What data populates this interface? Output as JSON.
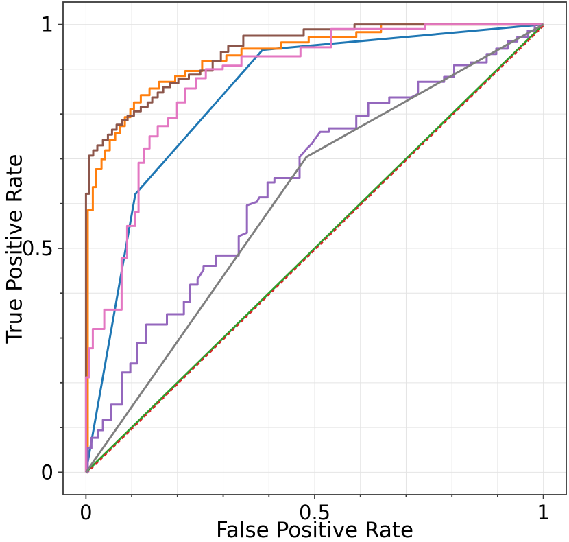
{
  "chart_data": {
    "type": "line",
    "title": "",
    "xlabel": "False Positive Rate",
    "ylabel": "True Positive Rate",
    "xlim": [
      -0.05,
      1.05
    ],
    "ylim": [
      -0.05,
      1.05
    ],
    "x_tick_labels": [
      {
        "value": 0,
        "label": "0"
      },
      {
        "value": 0.5,
        "label": "0.5"
      },
      {
        "value": 1,
        "label": "1"
      }
    ],
    "y_tick_labels": [
      {
        "value": 0,
        "label": "0"
      },
      {
        "value": 0.5,
        "label": "0.5"
      },
      {
        "value": 1,
        "label": "1"
      }
    ],
    "minor_tick_step": 0.1,
    "grid": {
      "on": true,
      "step": 0.1,
      "color": "#e4e4e4"
    },
    "legend": "none",
    "colors": {
      "spine": "#3a3a3a",
      "tick": "#3a3a3a",
      "text": "#000000",
      "background": "#ffffff"
    },
    "series": [
      {
        "name": "roc-curve-blue",
        "color": "#1f77b4",
        "style": "solid",
        "points": [
          [
            0,
            0
          ],
          [
            0.108,
            0.621
          ],
          [
            0.386,
            0.943
          ],
          [
            1,
            1
          ]
        ]
      },
      {
        "name": "roc-curve-orange",
        "color": "#ff7f0e",
        "style": "solid",
        "points": [
          [
            0.004,
            0
          ],
          [
            0.004,
            0.585
          ],
          [
            0.015,
            0.585
          ],
          [
            0.015,
            0.637
          ],
          [
            0.022,
            0.637
          ],
          [
            0.022,
            0.677
          ],
          [
            0.034,
            0.677
          ],
          [
            0.034,
            0.699
          ],
          [
            0.042,
            0.699
          ],
          [
            0.042,
            0.719
          ],
          [
            0.052,
            0.719
          ],
          [
            0.052,
            0.742
          ],
          [
            0.064,
            0.742
          ],
          [
            0.064,
            0.757
          ],
          [
            0.075,
            0.757
          ],
          [
            0.075,
            0.773
          ],
          [
            0.085,
            0.773
          ],
          [
            0.085,
            0.793
          ],
          [
            0.097,
            0.793
          ],
          [
            0.097,
            0.811
          ],
          [
            0.105,
            0.811
          ],
          [
            0.105,
            0.826
          ],
          [
            0.12,
            0.826
          ],
          [
            0.12,
            0.842
          ],
          [
            0.139,
            0.842
          ],
          [
            0.139,
            0.857
          ],
          [
            0.16,
            0.857
          ],
          [
            0.16,
            0.872
          ],
          [
            0.195,
            0.872
          ],
          [
            0.195,
            0.885
          ],
          [
            0.217,
            0.885
          ],
          [
            0.217,
            0.896
          ],
          [
            0.254,
            0.896
          ],
          [
            0.254,
            0.919
          ],
          [
            0.307,
            0.919
          ],
          [
            0.307,
            0.931
          ],
          [
            0.34,
            0.931
          ],
          [
            0.34,
            0.946
          ],
          [
            0.427,
            0.946
          ],
          [
            0.427,
            0.96
          ],
          [
            0.487,
            0.96
          ],
          [
            0.487,
            0.972
          ],
          [
            0.591,
            0.972
          ],
          [
            0.591,
            0.983
          ],
          [
            0.645,
            0.983
          ],
          [
            0.645,
            1
          ],
          [
            1,
            1
          ]
        ]
      },
      {
        "name": "roc-curve-green-chance",
        "color": "#2ca02c",
        "style": "solid",
        "points": [
          [
            0,
            0
          ],
          [
            1,
            1
          ]
        ]
      },
      {
        "name": "roc-curve-red-chance",
        "color": "#d62728",
        "style": "dashed",
        "points": [
          [
            0,
            0
          ],
          [
            1,
            1
          ]
        ]
      },
      {
        "name": "roc-curve-purple",
        "color": "#9467bd",
        "style": "solid",
        "points": [
          [
            0,
            0
          ],
          [
            0.004,
            0
          ],
          [
            0.004,
            0.054
          ],
          [
            0.012,
            0.054
          ],
          [
            0.012,
            0.077
          ],
          [
            0.027,
            0.077
          ],
          [
            0.027,
            0.094
          ],
          [
            0.037,
            0.094
          ],
          [
            0.037,
            0.117
          ],
          [
            0.055,
            0.117
          ],
          [
            0.055,
            0.151
          ],
          [
            0.079,
            0.151
          ],
          [
            0.079,
            0.223
          ],
          [
            0.097,
            0.223
          ],
          [
            0.097,
            0.243
          ],
          [
            0.112,
            0.243
          ],
          [
            0.112,
            0.289
          ],
          [
            0.132,
            0.289
          ],
          [
            0.132,
            0.33
          ],
          [
            0.177,
            0.33
          ],
          [
            0.177,
            0.353
          ],
          [
            0.214,
            0.353
          ],
          [
            0.214,
            0.381
          ],
          [
            0.228,
            0.381
          ],
          [
            0.228,
            0.419
          ],
          [
            0.244,
            0.419
          ],
          [
            0.244,
            0.432
          ],
          [
            0.251,
            0.442
          ],
          [
            0.257,
            0.453
          ],
          [
            0.257,
            0.461
          ],
          [
            0.284,
            0.461
          ],
          [
            0.284,
            0.484
          ],
          [
            0.334,
            0.484
          ],
          [
            0.334,
            0.527
          ],
          [
            0.352,
            0.535
          ],
          [
            0.352,
            0.596
          ],
          [
            0.374,
            0.604
          ],
          [
            0.379,
            0.614
          ],
          [
            0.397,
            0.614
          ],
          [
            0.397,
            0.647
          ],
          [
            0.412,
            0.647
          ],
          [
            0.412,
            0.657
          ],
          [
            0.467,
            0.657
          ],
          [
            0.467,
            0.704
          ],
          [
            0.476,
            0.714
          ],
          [
            0.483,
            0.723
          ],
          [
            0.494,
            0.734
          ],
          [
            0.501,
            0.745
          ],
          [
            0.512,
            0.76
          ],
          [
            0.531,
            0.76
          ],
          [
            0.531,
            0.768
          ],
          [
            0.591,
            0.768
          ],
          [
            0.591,
            0.796
          ],
          [
            0.617,
            0.796
          ],
          [
            0.617,
            0.825
          ],
          [
            0.663,
            0.825
          ],
          [
            0.663,
            0.837
          ],
          [
            0.711,
            0.837
          ],
          [
            0.726,
            0.845
          ],
          [
            0.726,
            0.872
          ],
          [
            0.783,
            0.872
          ],
          [
            0.783,
            0.883
          ],
          [
            0.805,
            0.883
          ],
          [
            0.805,
            0.909
          ],
          [
            0.841,
            0.909
          ],
          [
            0.841,
            0.915
          ],
          [
            0.876,
            0.915
          ],
          [
            0.876,
            0.934
          ],
          [
            0.897,
            0.934
          ],
          [
            0.897,
            0.946
          ],
          [
            0.922,
            0.946
          ],
          [
            0.922,
            0.962
          ],
          [
            0.943,
            0.962
          ],
          [
            0.943,
            0.972
          ],
          [
            0.966,
            0.972
          ],
          [
            0.966,
            0.986
          ],
          [
            0.981,
            0.986
          ],
          [
            0.981,
            1
          ],
          [
            1,
            1
          ]
        ]
      },
      {
        "name": "roc-curve-brown",
        "color": "#8c564b",
        "style": "solid",
        "points": [
          [
            0,
            0
          ],
          [
            0,
            0.622
          ],
          [
            0.007,
            0.622
          ],
          [
            0.007,
            0.707
          ],
          [
            0.016,
            0.707
          ],
          [
            0.016,
            0.719
          ],
          [
            0.025,
            0.719
          ],
          [
            0.025,
            0.73
          ],
          [
            0.037,
            0.73
          ],
          [
            0.037,
            0.742
          ],
          [
            0.048,
            0.742
          ],
          [
            0.048,
            0.754
          ],
          [
            0.057,
            0.754
          ],
          [
            0.057,
            0.765
          ],
          [
            0.067,
            0.765
          ],
          [
            0.067,
            0.776
          ],
          [
            0.079,
            0.776
          ],
          [
            0.079,
            0.786
          ],
          [
            0.091,
            0.786
          ],
          [
            0.091,
            0.796
          ],
          [
            0.105,
            0.796
          ],
          [
            0.105,
            0.806
          ],
          [
            0.12,
            0.806
          ],
          [
            0.12,
            0.816
          ],
          [
            0.135,
            0.816
          ],
          [
            0.135,
            0.826
          ],
          [
            0.145,
            0.826
          ],
          [
            0.145,
            0.837
          ],
          [
            0.157,
            0.837
          ],
          [
            0.157,
            0.848
          ],
          [
            0.169,
            0.848
          ],
          [
            0.169,
            0.86
          ],
          [
            0.184,
            0.86
          ],
          [
            0.184,
            0.869
          ],
          [
            0.202,
            0.869
          ],
          [
            0.202,
            0.879
          ],
          [
            0.225,
            0.879
          ],
          [
            0.225,
            0.888
          ],
          [
            0.25,
            0.888
          ],
          [
            0.25,
            0.897
          ],
          [
            0.277,
            0.897
          ],
          [
            0.277,
            0.919
          ],
          [
            0.295,
            0.919
          ],
          [
            0.295,
            0.939
          ],
          [
            0.311,
            0.939
          ],
          [
            0.311,
            0.952
          ],
          [
            0.344,
            0.952
          ],
          [
            0.344,
            0.975
          ],
          [
            0.476,
            0.975
          ],
          [
            0.476,
            0.989
          ],
          [
            0.587,
            0.989
          ],
          [
            0.587,
            1
          ],
          [
            1,
            1
          ]
        ]
      },
      {
        "name": "roc-curve-pink",
        "color": "#e377c2",
        "style": "solid",
        "points": [
          [
            0,
            0
          ],
          [
            0,
            0.212
          ],
          [
            0.007,
            0.212
          ],
          [
            0.007,
            0.277
          ],
          [
            0.015,
            0.277
          ],
          [
            0.015,
            0.32
          ],
          [
            0.04,
            0.32
          ],
          [
            0.04,
            0.363
          ],
          [
            0.078,
            0.363
          ],
          [
            0.078,
            0.478
          ],
          [
            0.09,
            0.478
          ],
          [
            0.09,
            0.55
          ],
          [
            0.108,
            0.55
          ],
          [
            0.108,
            0.581
          ],
          [
            0.115,
            0.581
          ],
          [
            0.115,
            0.691
          ],
          [
            0.127,
            0.691
          ],
          [
            0.127,
            0.723
          ],
          [
            0.139,
            0.723
          ],
          [
            0.139,
            0.75
          ],
          [
            0.157,
            0.75
          ],
          [
            0.157,
            0.773
          ],
          [
            0.18,
            0.773
          ],
          [
            0.18,
            0.791
          ],
          [
            0.199,
            0.791
          ],
          [
            0.199,
            0.826
          ],
          [
            0.217,
            0.826
          ],
          [
            0.217,
            0.857
          ],
          [
            0.24,
            0.857
          ],
          [
            0.24,
            0.88
          ],
          [
            0.262,
            0.88
          ],
          [
            0.262,
            0.9
          ],
          [
            0.299,
            0.9
          ],
          [
            0.299,
            0.908
          ],
          [
            0.34,
            0.908
          ],
          [
            0.34,
            0.929
          ],
          [
            0.469,
            0.929
          ],
          [
            0.469,
            0.949
          ],
          [
            0.536,
            0.949
          ],
          [
            0.536,
            0.99
          ],
          [
            0.741,
            0.99
          ],
          [
            0.741,
            1
          ],
          [
            1,
            1
          ]
        ]
      },
      {
        "name": "roc-curve-gray",
        "color": "#7f7f7f",
        "style": "solid",
        "points": [
          [
            0,
            0
          ],
          [
            0.482,
            0.704
          ],
          [
            1,
            1
          ]
        ]
      }
    ]
  }
}
